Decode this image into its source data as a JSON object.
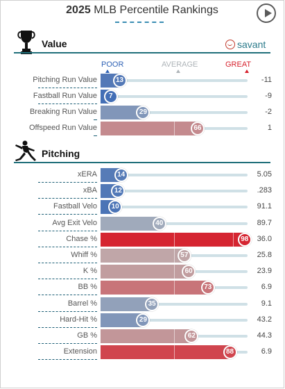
{
  "title": {
    "year": "2025",
    "text": "MLB Percentile Rankings"
  },
  "sections": [
    {
      "id": "value",
      "label": "Value",
      "icon": "trophy-icon"
    },
    {
      "id": "pitching",
      "label": "Pitching",
      "icon": "pitcher-icon"
    }
  ],
  "brand": {
    "name": "savant",
    "icon": "baseball-icon"
  },
  "scale": {
    "poor": "POOR",
    "average": "AVERAGE",
    "great": "GREAT"
  },
  "colors": {
    "poor": "#2f62b5",
    "average": "#bcbcbc",
    "great": "#d61f2b",
    "rule": "#1f6f7a",
    "track": "#cfe0e6"
  },
  "value_metrics": [
    {
      "name": "Pitching Run Value",
      "percentile": 13,
      "value": "-11"
    },
    {
      "name": "Fastball Run Value",
      "percentile": 7,
      "value": "-9"
    },
    {
      "name": "Breaking Run Value",
      "percentile": 29,
      "value": "-2"
    },
    {
      "name": "Offspeed Run Value",
      "percentile": 66,
      "value": "1"
    }
  ],
  "pitching_metrics": [
    {
      "name": "xERA",
      "percentile": 14,
      "value": "5.05"
    },
    {
      "name": "xBA",
      "percentile": 12,
      "value": ".283"
    },
    {
      "name": "Fastball Velo",
      "percentile": 10,
      "value": "91.1"
    },
    {
      "name": "Avg Exit Velo",
      "percentile": 40,
      "value": "89.7"
    },
    {
      "name": "Chase %",
      "percentile": 98,
      "value": "36.0"
    },
    {
      "name": "Whiff %",
      "percentile": 57,
      "value": "25.8"
    },
    {
      "name": "K %",
      "percentile": 60,
      "value": "23.9"
    },
    {
      "name": "BB %",
      "percentile": 73,
      "value": "6.9"
    },
    {
      "name": "Barrel %",
      "percentile": 35,
      "value": "9.1"
    },
    {
      "name": "Hard-Hit %",
      "percentile": 29,
      "value": "43.2"
    },
    {
      "name": "GB %",
      "percentile": 62,
      "value": "44.3"
    },
    {
      "name": "Extension",
      "percentile": 88,
      "value": "6.9"
    }
  ]
}
